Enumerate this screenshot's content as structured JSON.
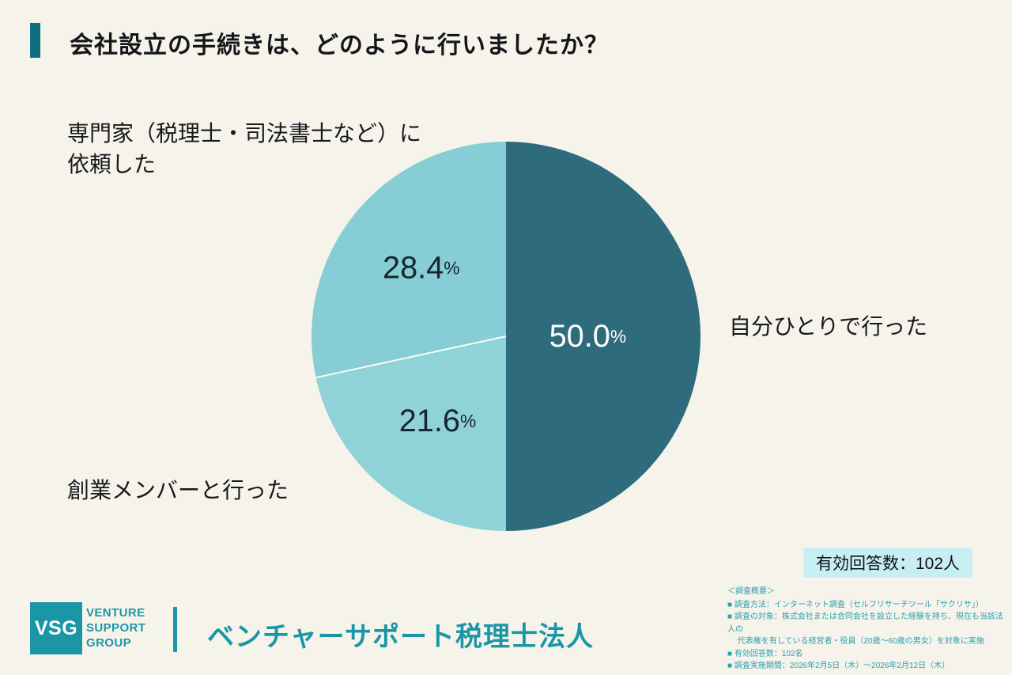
{
  "page": {
    "background": "#f6f3eb"
  },
  "header": {
    "title": "会社設立の手続きは、どのように行いましたか？",
    "accent_color": "#0e6f80"
  },
  "chart_data": {
    "type": "pie",
    "title": "会社設立の手続きは、どのように行いましたか？",
    "unit": "%",
    "direction": "clockwise",
    "start_angle_deg": 0,
    "legend_position": "outside-callouts",
    "slices": [
      {
        "label": "自分ひとりで行った",
        "value": 50.0,
        "color": "#2e6b7c",
        "label_color": "#ffffff"
      },
      {
        "label": "創業メンバーと行った",
        "value": 21.6,
        "color": "#8fd2d8",
        "label_color": "#16262e"
      },
      {
        "label": "専門家（税理士・司法書士など）に依頼した",
        "value": 28.4,
        "color": "#86cdd5",
        "label_color": "#16262e"
      }
    ]
  },
  "callouts": {
    "right_label": "自分ひとりで行った",
    "top_left_line1": "専門家（税理士・司法書士など）に",
    "top_left_line2": "依頼した",
    "bottom_left_label": "創業メンバーと行った"
  },
  "badge": {
    "text": "有効回答数：102人",
    "background": "#c7eff3"
  },
  "footer": {
    "logo_text": "VSG",
    "logo_caption_line1": "VENTURE",
    "logo_caption_line2": "SUPPORT",
    "logo_caption_line3": "GROUP",
    "company_name": "ベンチャーサポート税理士法人",
    "brand_color": "#1b96a7"
  },
  "survey_note": {
    "heading": "＜調査概要＞",
    "lines": [
      "■ 調査方法：インターネット調査（セルフリサーチツール「サクリサ」）",
      "■ 調査の対象：株式会社または合同会社を設立した経験を持ち、現在も当該法人の",
      "　 代表権を有している経営者・役員（20歳～60歳の男女）を対象に実施",
      "■ 有効回答数：102名",
      "■ 調査実施期間：2026年2月5日（木）～2026年2月12日（木）"
    ]
  }
}
